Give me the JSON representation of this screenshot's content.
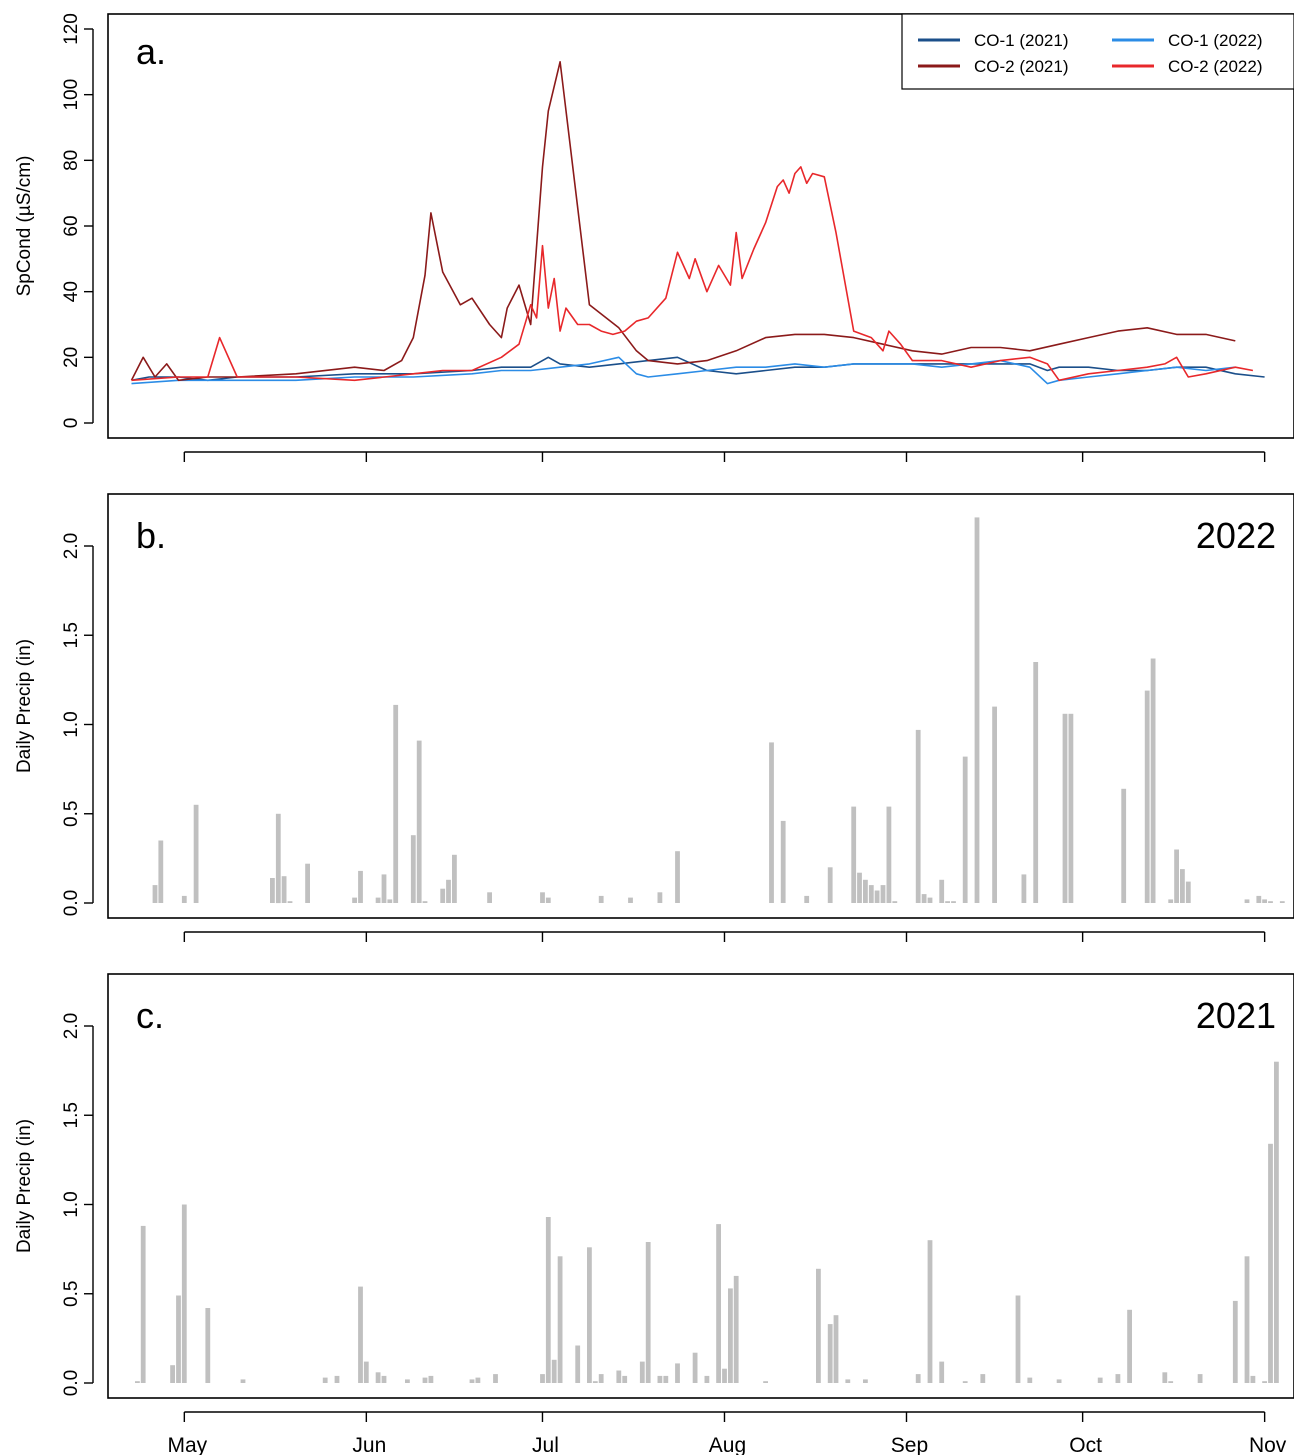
{
  "chart_data": [
    {
      "panel_label": "a.",
      "type": "line",
      "ylabel": "SpCond (µS/cm)",
      "ylim": [
        0,
        120
      ],
      "yticks": [
        "0",
        "20",
        "40",
        "60",
        "80",
        "100",
        "120"
      ],
      "legend": {
        "placement": "top-right",
        "entries": [
          "CO-1 (2021)",
          "CO-1 (2022)",
          "CO-2 (2021)",
          "CO-2 (2022)"
        ]
      },
      "series": [
        {
          "name": "CO-1 (2021)",
          "color": "#1b4f8a",
          "x": [
            112,
            115,
            120,
            125,
            130,
            140,
            150,
            160,
            170,
            175,
            180,
            183,
            185,
            190,
            195,
            200,
            205,
            210,
            215,
            220,
            225,
            230,
            235,
            240,
            245,
            250,
            255,
            260,
            265,
            268,
            270,
            275,
            280,
            285,
            290,
            295,
            300,
            305
          ],
          "y": [
            13,
            14,
            14,
            13,
            14,
            14,
            15,
            15,
            16,
            17,
            17,
            20,
            18,
            17,
            18,
            19,
            20,
            16,
            15,
            16,
            17,
            17,
            18,
            18,
            18,
            18,
            18,
            18,
            18,
            16,
            17,
            17,
            16,
            16,
            17,
            17,
            15,
            14
          ]
        },
        {
          "name": "CO-1 (2022)",
          "color": "#2b8ce6",
          "x": [
            112,
            120,
            130,
            140,
            150,
            160,
            170,
            175,
            180,
            185,
            190,
            195,
            198,
            200,
            205,
            210,
            215,
            220,
            225,
            230,
            235,
            240,
            245,
            250,
            255,
            260,
            265,
            268,
            270,
            275,
            280,
            285,
            290,
            295,
            300
          ],
          "y": [
            12,
            13,
            13,
            13,
            14,
            14,
            15,
            16,
            16,
            17,
            18,
            20,
            15,
            14,
            15,
            16,
            17,
            17,
            18,
            17,
            18,
            18,
            18,
            17,
            18,
            19,
            17,
            12,
            13,
            14,
            15,
            16,
            17,
            16,
            17
          ]
        },
        {
          "name": "CO-2 (2021)",
          "color": "#8b1a1a",
          "x": [
            112,
            114,
            116,
            118,
            120,
            125,
            130,
            140,
            150,
            155,
            158,
            160,
            162,
            163,
            165,
            168,
            170,
            173,
            175,
            176,
            178,
            180,
            182,
            183,
            185,
            190,
            195,
            198,
            200,
            205,
            210,
            215,
            220,
            225,
            230,
            235,
            240,
            245,
            250,
            255,
            260,
            265,
            270,
            275,
            280,
            285,
            290,
            295,
            300
          ],
          "y": [
            13,
            20,
            14,
            18,
            13,
            14,
            14,
            15,
            17,
            16,
            19,
            26,
            45,
            64,
            46,
            36,
            38,
            30,
            26,
            35,
            42,
            30,
            78,
            95,
            110,
            36,
            29,
            22,
            19,
            18,
            19,
            22,
            26,
            27,
            27,
            26,
            24,
            22,
            21,
            23,
            23,
            22,
            24,
            26,
            28,
            29,
            27,
            27,
            25
          ]
        },
        {
          "name": "CO-2 (2022)",
          "color": "#e8282b",
          "x": [
            112,
            120,
            125,
            127,
            130,
            140,
            150,
            160,
            165,
            170,
            175,
            178,
            180,
            181,
            182,
            183,
            184,
            185,
            186,
            188,
            190,
            192,
            194,
            196,
            198,
            200,
            203,
            205,
            207,
            208,
            210,
            212,
            214,
            215,
            216,
            218,
            220,
            222,
            223,
            224,
            225,
            226,
            227,
            228,
            230,
            232,
            235,
            238,
            239,
            240,
            241,
            243,
            245,
            250,
            255,
            260,
            265,
            268,
            270,
            275,
            280,
            285,
            288,
            290,
            292,
            295,
            300,
            303
          ],
          "y": [
            13,
            14,
            14,
            26,
            14,
            14,
            13,
            15,
            16,
            16,
            20,
            24,
            36,
            32,
            54,
            35,
            44,
            28,
            35,
            30,
            30,
            28,
            27,
            28,
            31,
            32,
            38,
            52,
            44,
            50,
            40,
            48,
            42,
            58,
            44,
            53,
            61,
            72,
            74,
            70,
            76,
            78,
            73,
            76,
            75,
            58,
            28,
            26,
            24,
            22,
            28,
            24,
            19,
            19,
            17,
            19,
            20,
            18,
            13,
            15,
            16,
            17,
            18,
            20,
            14,
            15,
            17,
            16
          ]
        }
      ]
    },
    {
      "panel_label": "b.",
      "type": "bar",
      "year_label": "2022",
      "ylabel": "Daily Precip (in)",
      "ylim": [
        0,
        2.2
      ],
      "yticks": [
        "0.0",
        "0.5",
        "1.0",
        "1.5",
        "2.0"
      ],
      "x": [
        116,
        117,
        121,
        123,
        136,
        137,
        138,
        139,
        142,
        150,
        151,
        154,
        155,
        156,
        157,
        160,
        161,
        162,
        165,
        166,
        167,
        173,
        182,
        183,
        192,
        197,
        202,
        205,
        221,
        223,
        227,
        231,
        235,
        236,
        237,
        238,
        239,
        240,
        241,
        242,
        246,
        247,
        248,
        250,
        251,
        252,
        254,
        256,
        259,
        264,
        266,
        271,
        272,
        281,
        285,
        286,
        289,
        290,
        291,
        292,
        302,
        304,
        305,
        306,
        308,
        312
      ],
      "values": [
        0.1,
        0.35,
        0.04,
        0.55,
        0.14,
        0.5,
        0.15,
        0.01,
        0.22,
        0.03,
        0.18,
        0.03,
        0.16,
        0.02,
        1.11,
        0.38,
        0.91,
        0.01,
        0.08,
        0.13,
        0.27,
        0.06,
        0.06,
        0.03,
        0.04,
        0.03,
        0.06,
        0.29,
        0.9,
        0.46,
        0.04,
        0.2,
        0.54,
        0.17,
        0.13,
        0.1,
        0.07,
        0.1,
        0.54,
        0.01,
        0.97,
        0.05,
        0.03,
        0.13,
        0.01,
        0.01,
        0.82,
        2.16,
        1.1,
        0.16,
        1.35,
        1.06,
        1.06,
        0.64,
        1.19,
        1.37,
        0.02,
        0.3,
        0.19,
        0.12,
        0.02,
        0.04,
        0.02,
        0.01,
        0.01,
        0.01
      ]
    },
    {
      "panel_label": "c.",
      "type": "bar",
      "year_label": "2021",
      "ylabel": "Daily Precip (in)",
      "ylim": [
        0,
        2.2
      ],
      "yticks": [
        "0.0",
        "0.5",
        "1.0",
        "1.5",
        "2.0"
      ],
      "xticks": [
        "May",
        "Jun",
        "Jul",
        "Aug",
        "Sep",
        "Oct",
        "Nov"
      ],
      "x": [
        113,
        114,
        119,
        120,
        121,
        125,
        131,
        145,
        147,
        151,
        152,
        154,
        155,
        159,
        162,
        163,
        170,
        171,
        174,
        182,
        183,
        184,
        185,
        188,
        190,
        191,
        192,
        195,
        196,
        199,
        200,
        202,
        203,
        205,
        208,
        210,
        212,
        213,
        214,
        215,
        220,
        229,
        231,
        232,
        234,
        237,
        246,
        248,
        250,
        254,
        257,
        263,
        265,
        270,
        277,
        280,
        282,
        288,
        289,
        294,
        300,
        302,
        303,
        305
      ],
      "values": [
        0.01,
        0.88,
        0.1,
        0.49,
        1.0,
        0.42,
        0.02,
        0.03,
        0.04,
        0.54,
        0.12,
        0.06,
        0.04,
        0.02,
        0.03,
        0.04,
        0.02,
        0.03,
        0.05,
        0.05,
        0.93,
        0.13,
        0.71,
        0.21,
        0.76,
        0.01,
        0.05,
        0.07,
        0.04,
        0.12,
        0.79,
        0.04,
        0.04,
        0.11,
        0.17,
        0.04,
        0.89,
        0.08,
        0.53,
        0.6,
        0.01,
        0.64,
        0.33,
        0.38,
        0.02,
        0.02,
        0.05,
        0.8,
        0.12,
        0.01,
        0.05,
        0.49,
        0.03,
        0.02,
        0.03,
        0.05,
        0.41,
        0.06,
        0.01,
        0.05,
        0.46,
        0.71,
        0.04,
        0.01
      ]
    }
  ],
  "shared_x_axis": {
    "type": "date (day of year)",
    "xlim": [
      108,
      310
    ],
    "tick_days": [
      121,
      152,
      182,
      213,
      244,
      274,
      305
    ]
  },
  "precip_bars_2021_tail": {
    "x": [
      306,
      307
    ],
    "values": [
      1.34,
      1.8
    ]
  }
}
